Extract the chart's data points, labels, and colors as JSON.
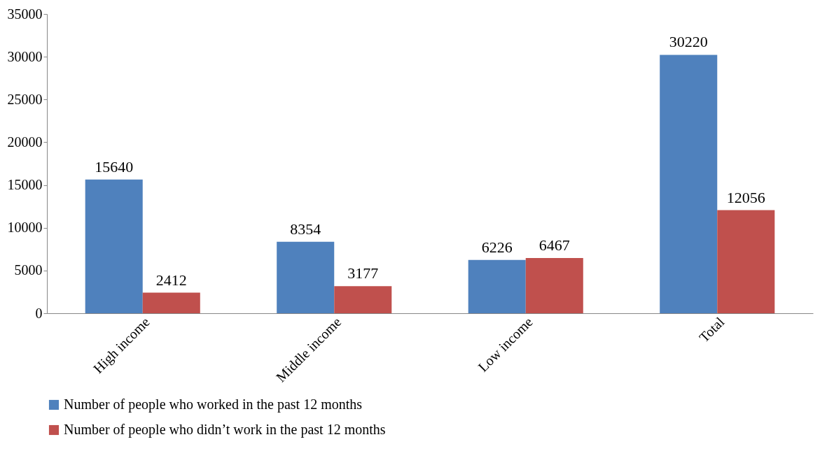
{
  "chart_data": {
    "type": "bar",
    "categories": [
      "High income",
      "Middle income",
      "Low income",
      "Total"
    ],
    "series": [
      {
        "name": "Number of people who worked in the past 12 months",
        "color": "#4f81bd",
        "values": [
          15640,
          8354,
          6226,
          30220
        ]
      },
      {
        "name": "Number of people who didn’t work in the past 12 months",
        "color": "#c0504d",
        "values": [
          2412,
          3177,
          6467,
          12056
        ]
      }
    ],
    "ylim": [
      0,
      35000
    ],
    "yticks": [
      0,
      5000,
      10000,
      15000,
      20000,
      25000,
      30000,
      35000
    ],
    "grid": false,
    "legend": "bottom",
    "data_labels": true
  }
}
